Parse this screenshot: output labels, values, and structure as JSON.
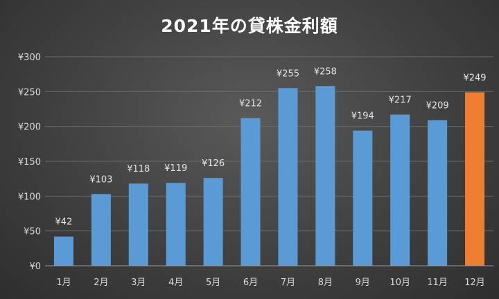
{
  "chart_data": {
    "type": "bar",
    "title": "2021年の貸株金利額",
    "categories": [
      "1月",
      "2月",
      "3月",
      "4月",
      "5月",
      "6月",
      "7月",
      "8月",
      "9月",
      "10月",
      "11月",
      "12月"
    ],
    "values": [
      42,
      103,
      118,
      119,
      126,
      212,
      255,
      258,
      194,
      217,
      209,
      249
    ],
    "data_labels": [
      "¥42",
      "¥103",
      "¥118",
      "¥119",
      "¥126",
      "¥212",
      "¥255",
      "¥258",
      "¥194",
      "¥217",
      "¥209",
      "¥249"
    ],
    "ylim": [
      0,
      300
    ],
    "yticks": [
      0,
      50,
      100,
      150,
      200,
      250,
      300
    ],
    "ytick_labels": [
      "¥0",
      "¥50",
      "¥100",
      "¥150",
      "¥200",
      "¥250",
      "¥300"
    ],
    "grid": true,
    "colors": {
      "bar": "#5b9bd5",
      "highlight": "#ed7d31",
      "highlight_index": 11
    }
  }
}
